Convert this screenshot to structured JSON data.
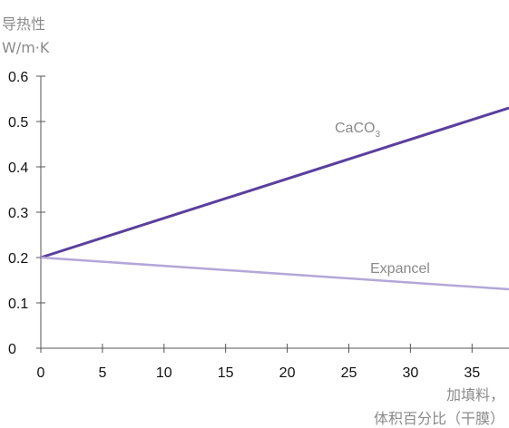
{
  "chart_data": {
    "type": "line",
    "ylabel_lines": [
      "导热性",
      "W/m·K"
    ],
    "xlabel_lines": [
      "加填料，",
      "体积百分比（干膜）"
    ],
    "xlim": [
      0,
      38
    ],
    "ylim": [
      0,
      0.6
    ],
    "x_ticks": [
      0,
      5,
      10,
      15,
      20,
      25,
      30,
      35
    ],
    "x_tick_labels": [
      "0",
      "5",
      "10",
      "15",
      "20",
      "25",
      "30",
      "35"
    ],
    "y_ticks": [
      0,
      0.1,
      0.2,
      0.3,
      0.4,
      0.5,
      0.6
    ],
    "y_tick_labels": [
      "0",
      "0.1",
      "0.2",
      "0.3",
      "0.4",
      "0.5",
      "0.6"
    ],
    "grid": false,
    "series": [
      {
        "name": "CaCO",
        "name_sub": "3",
        "x": [
          0,
          38
        ],
        "y": [
          0.2,
          0.53
        ],
        "color": "#5b3f9e"
      },
      {
        "name": "Expancel",
        "x": [
          0,
          38
        ],
        "y": [
          0.2,
          0.13
        ],
        "color": "#b3a7d8"
      }
    ]
  }
}
